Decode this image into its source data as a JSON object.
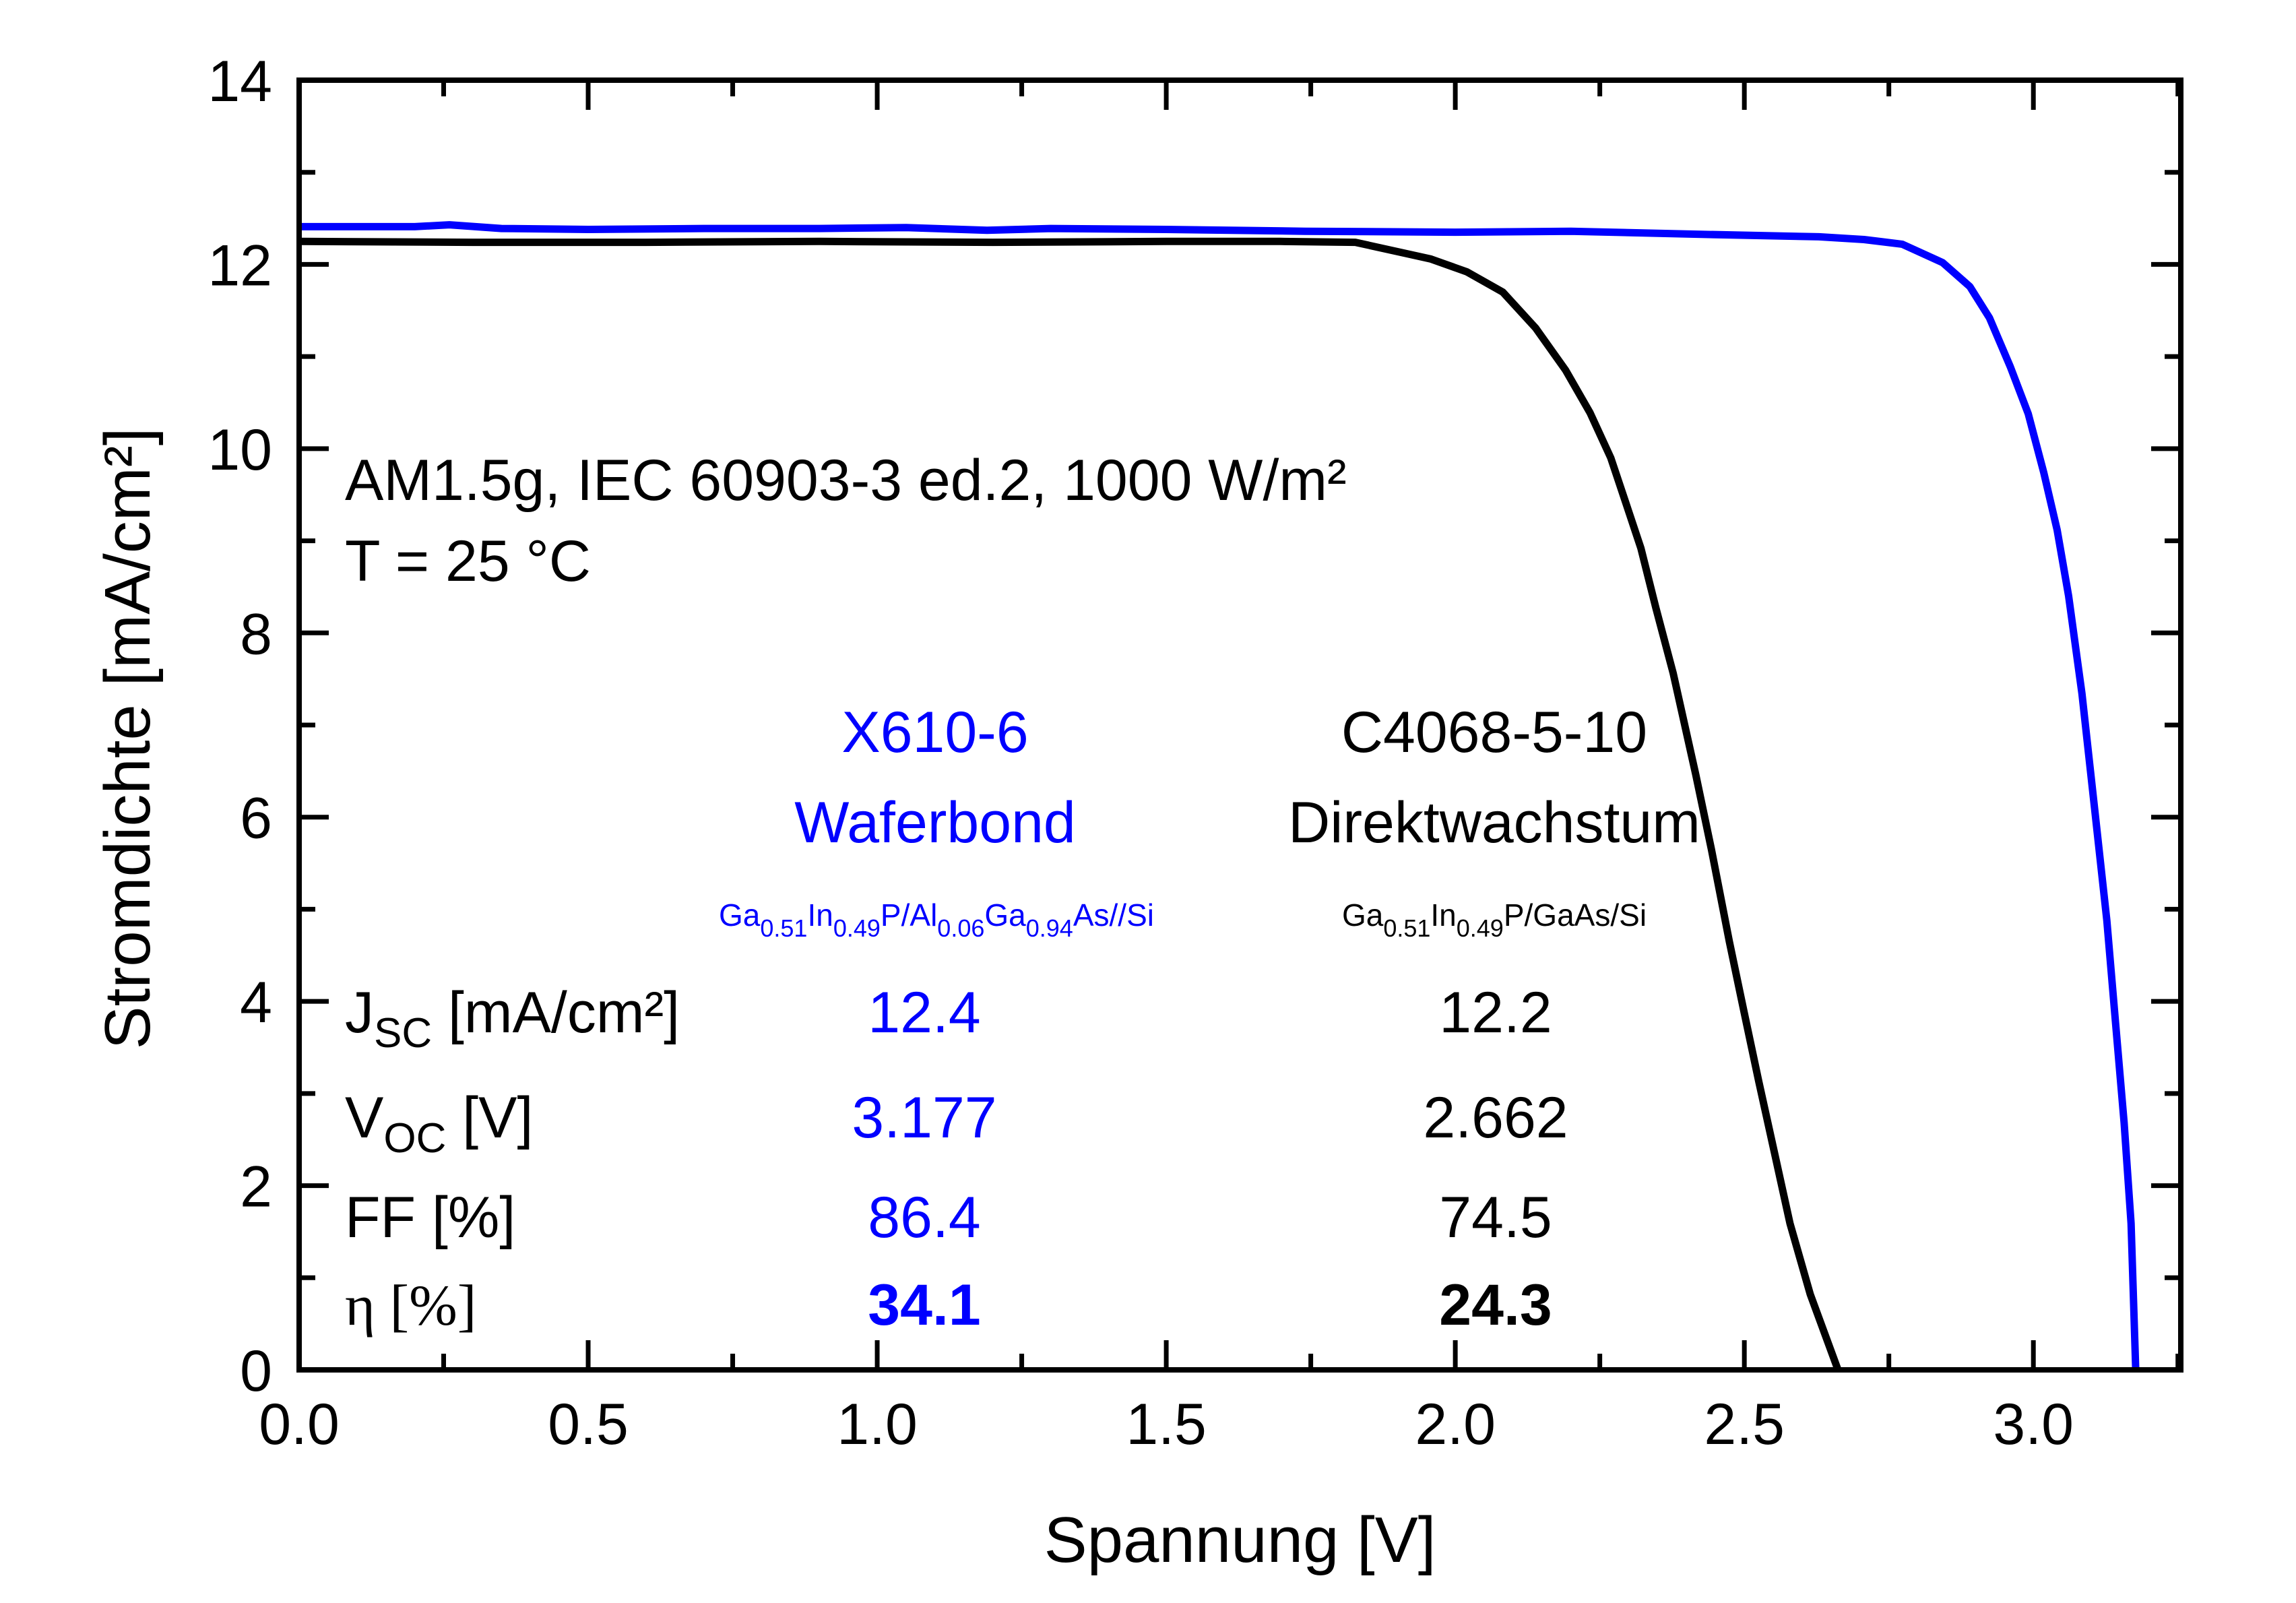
{
  "colors": {
    "series_blue": "#0000ff",
    "series_black": "#000000",
    "axis": "#000000",
    "background": "#ffffff"
  },
  "chart_data": {
    "type": "line",
    "title": "",
    "xlabel": "Spannung [V]",
    "ylabel": "Stromdichte [mA/cm²]",
    "xlim": [
      0,
      3.255
    ],
    "ylim": [
      0,
      14
    ],
    "x_ticks": [
      0.0,
      0.5,
      1.0,
      1.5,
      2.0,
      2.5,
      3.0
    ],
    "x_tick_labels": [
      "0.0",
      "0.5",
      "1.0",
      "1.5",
      "2.0",
      "2.5",
      "3.0"
    ],
    "x_minor_ticks": [
      0.25,
      0.75,
      1.25,
      1.75,
      2.25,
      2.75,
      3.25
    ],
    "y_ticks": [
      0,
      2,
      4,
      6,
      8,
      10,
      12,
      14
    ],
    "y_tick_labels": [
      "0",
      "2",
      "4",
      "6",
      "8",
      "10",
      "12",
      "14"
    ],
    "y_minor_ticks": [
      1,
      3,
      5,
      7,
      9,
      11,
      13
    ],
    "grid": false,
    "legend": "none",
    "series": [
      {
        "name": "X610-6 Waferbond",
        "color": "#0000ff",
        "x": [
          0.0,
          0.1,
          0.2,
          0.26,
          0.35,
          0.5,
          0.7,
          0.9,
          1.05,
          1.19,
          1.3,
          1.5,
          1.74,
          2.0,
          2.2,
          2.4,
          2.629,
          2.707,
          2.773,
          2.843,
          2.89,
          2.924,
          2.96,
          2.991,
          3.018,
          3.041,
          3.061,
          3.084,
          3.107,
          3.127,
          3.142,
          3.157,
          3.169,
          3.177
        ],
        "y": [
          12.41,
          12.41,
          12.41,
          12.43,
          12.39,
          12.38,
          12.39,
          12.39,
          12.4,
          12.37,
          12.39,
          12.38,
          12.36,
          12.35,
          12.36,
          12.33,
          12.3,
          12.27,
          12.22,
          12.02,
          11.76,
          11.42,
          10.89,
          10.38,
          9.74,
          9.12,
          8.4,
          7.34,
          6.03,
          4.88,
          3.78,
          2.68,
          1.59,
          0.0
        ]
      },
      {
        "name": "C4068-5-10 Direktwachstum",
        "color": "#000000",
        "x": [
          0.0,
          0.3,
          0.6,
          0.9,
          1.2,
          1.5,
          1.697,
          1.827,
          1.957,
          2.02,
          2.082,
          2.139,
          2.191,
          2.233,
          2.269,
          2.295,
          2.321,
          2.347,
          2.377,
          2.416,
          2.443,
          2.474,
          2.499,
          2.525,
          2.552,
          2.579,
          2.614,
          2.662
        ],
        "y": [
          12.25,
          12.24,
          12.24,
          12.25,
          12.24,
          12.25,
          12.25,
          12.24,
          12.06,
          11.92,
          11.7,
          11.31,
          10.85,
          10.39,
          9.9,
          9.41,
          8.92,
          8.27,
          7.56,
          6.46,
          5.65,
          4.65,
          3.9,
          3.13,
          2.36,
          1.59,
          0.82,
          0.0
        ]
      }
    ],
    "annotations": {
      "conditions_line1": "AM1.5g, IEC 60903-3 ed.2, 1000 W/m²",
      "conditions_line2": "T = 25 °C",
      "samples": [
        {
          "id": "X610-6",
          "method": "Waferbond",
          "structure": [
            {
              "t": "Ga"
            },
            {
              "t": "0.51",
              "sub": true
            },
            {
              "t": "In"
            },
            {
              "t": "0.49",
              "sub": true
            },
            {
              "t": "P/Al"
            },
            {
              "t": "0.06",
              "sub": true
            },
            {
              "t": "Ga"
            },
            {
              "t": "0.94",
              "sub": true
            },
            {
              "t": "As//Si"
            }
          ],
          "color": "#0000ff",
          "jsc": "12.4",
          "voc": "3.177",
          "ff": "86.4",
          "eta": "34.1"
        },
        {
          "id": "C4068-5-10",
          "method": "Direktwachstum",
          "structure": [
            {
              "t": "Ga"
            },
            {
              "t": "0.51",
              "sub": true
            },
            {
              "t": "In"
            },
            {
              "t": "0.49",
              "sub": true
            },
            {
              "t": "P/GaAs/Si"
            }
          ],
          "color": "#000000",
          "jsc": "12.2",
          "voc": "2.662",
          "ff": "74.5",
          "eta": "24.3"
        }
      ],
      "parameters": [
        {
          "main": "J",
          "sub": "SC",
          "unit": " [mA/cm²]"
        },
        {
          "main": "V",
          "sub": "OC",
          "unit": " [V]"
        },
        {
          "main": "FF",
          "sub": "",
          "unit": " [%]"
        },
        {
          "main": "η",
          "sub": "",
          "unit": " [%]"
        }
      ]
    }
  }
}
